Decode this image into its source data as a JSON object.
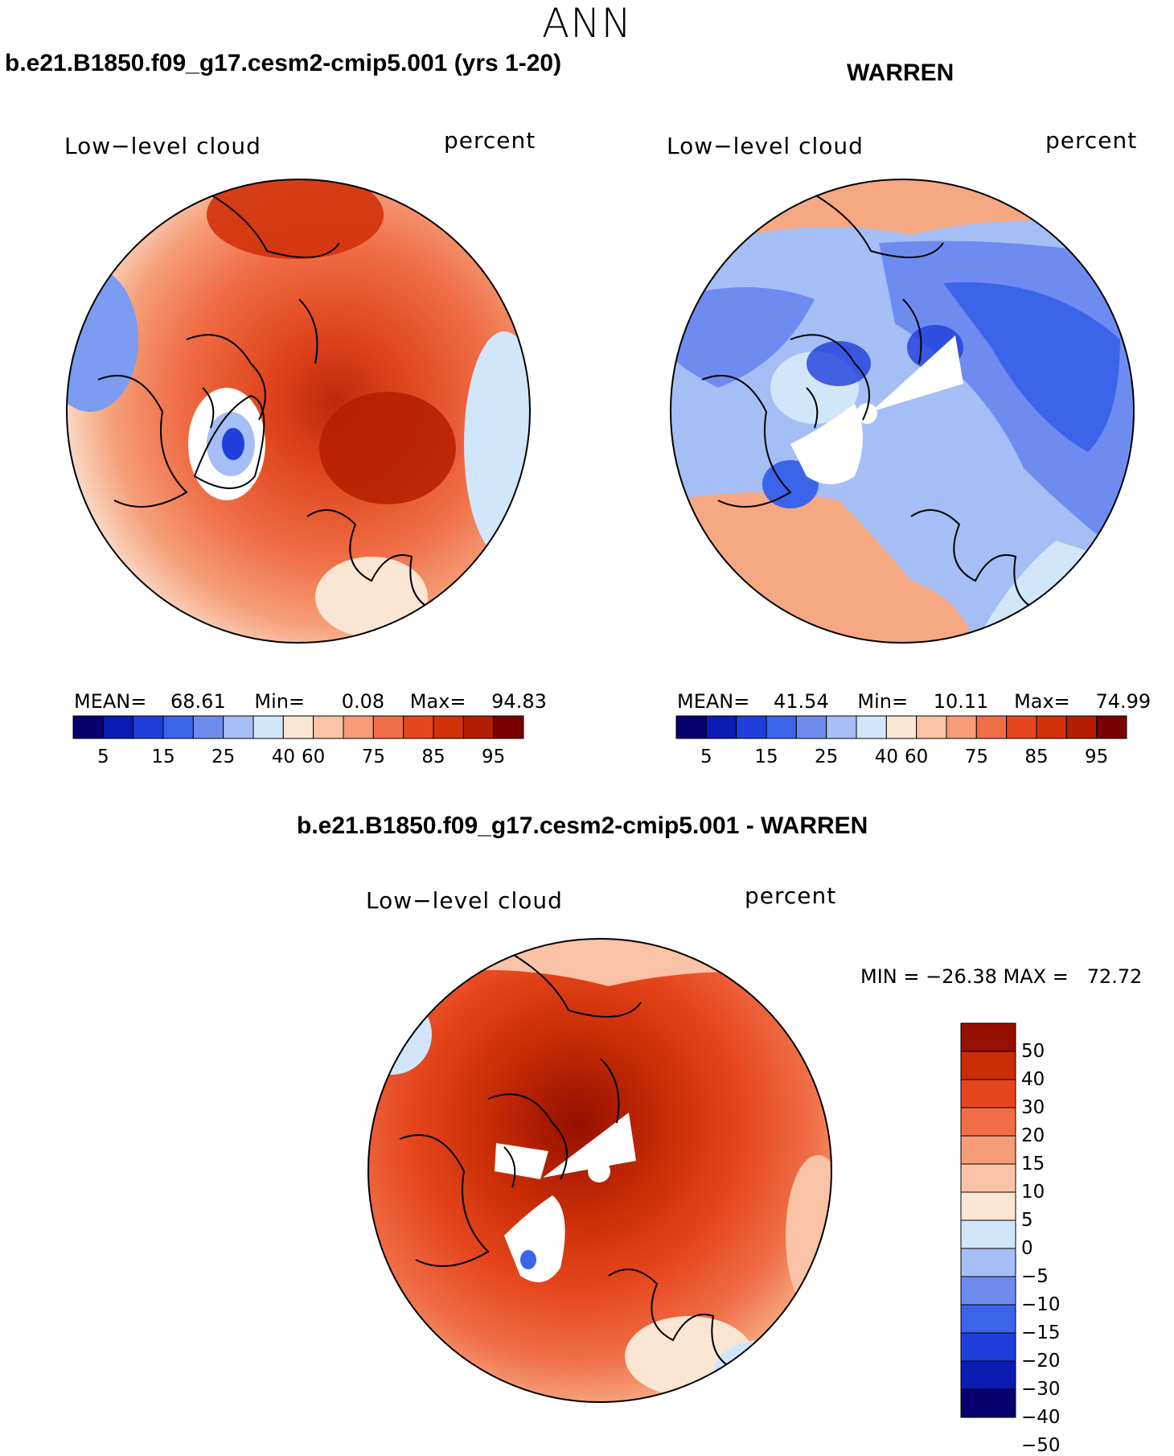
{
  "season": "ANN",
  "variable_label": "Low−level cloud",
  "units_label": "percent",
  "panels": {
    "model": {
      "title": "b.e21.B1850.f09_g17.cesm2-cmip5.001 (yrs 1-20)",
      "stats": {
        "mean_label": "MEAN=",
        "mean": "68.61",
        "min_label": "Min=",
        "min": "0.08",
        "max_label": "Max=",
        "max": "94.83"
      }
    },
    "obs": {
      "title": "WARREN",
      "stats": {
        "mean_label": "MEAN=",
        "mean": "41.54",
        "min_label": "Min=",
        "min": "10.11",
        "max_label": "Max=",
        "max": "74.99"
      }
    },
    "diff": {
      "title": "b.e21.B1850.f09_g17.cesm2-cmip5.001 - WARREN",
      "minmax": "MIN = −26.38 MAX =   72.72"
    }
  },
  "colors": {
    "abs_scale": [
      "#08006e",
      "#0a1cb4",
      "#1e3fdc",
      "#3c64eb",
      "#6e8cf0",
      "#a5bef5",
      "#d2e6fa",
      "#fae6d2",
      "#fac3a5",
      "#f59b78",
      "#f06e46",
      "#e6461e",
      "#d2320a",
      "#b41e00",
      "#780000"
    ],
    "diff_scale": [
      "#08006e",
      "#0a1cb4",
      "#1e3fdc",
      "#3c64eb",
      "#6e8cf0",
      "#a5bef5",
      "#d2e6fa",
      "#fae6d2",
      "#fac3a5",
      "#f59b78",
      "#f06e46",
      "#e6461e",
      "#c82d05",
      "#960f00"
    ]
  },
  "chart_data": [
    {
      "type": "heatmap",
      "projection": "north polar stereographic",
      "title": "b.e21.B1850.f09_g17.cesm2-cmip5.001 (yrs 1-20)",
      "variable": "Low-level cloud",
      "units": "percent",
      "mean": 68.61,
      "min": 0.08,
      "max": 94.83,
      "colorbar_ticks": [
        "5",
        "15",
        "25",
        "40",
        "60",
        "75",
        "85",
        "95"
      ],
      "contour_levels": [
        5,
        10,
        15,
        20,
        25,
        30,
        40,
        50,
        60,
        65,
        70,
        75,
        80,
        85,
        90,
        95
      ],
      "dominant_range": "70-90 over Arctic Ocean, <10 over central Greenland"
    },
    {
      "type": "heatmap",
      "projection": "north polar stereographic",
      "title": "WARREN",
      "variable": "Low-level cloud",
      "units": "percent",
      "mean": 41.54,
      "min": 10.11,
      "max": 74.99,
      "colorbar_ticks": [
        "5",
        "15",
        "25",
        "40",
        "60",
        "75",
        "85",
        "95"
      ],
      "contour_levels": [
        5,
        10,
        15,
        20,
        25,
        30,
        40,
        50,
        60,
        65,
        70,
        75,
        80,
        85,
        90,
        95
      ],
      "dominant_range": "20-50 over ocean and high latitudes, 60-70 in North Atlantic/Pacific; missing data near pole and Greenland"
    },
    {
      "type": "heatmap",
      "projection": "north polar stereographic",
      "title": "b.e21.B1850.f09_g17.cesm2-cmip5.001 - WARREN",
      "variable": "Low-level cloud",
      "units": "percent",
      "min": -26.38,
      "max": 72.72,
      "colorbar_ticks": [
        "50",
        "40",
        "30",
        "20",
        "15",
        "10",
        "5",
        "0",
        "−5",
        "−10",
        "−15",
        "−20",
        "−30",
        "−40",
        "−50"
      ],
      "contour_levels": [
        -50,
        -40,
        -30,
        -20,
        -15,
        -10,
        -5,
        0,
        5,
        10,
        15,
        20,
        30,
        40,
        50
      ],
      "dominant_range": "+20 to +50 over Arctic Ocean, small negative values near Greenland"
    }
  ]
}
